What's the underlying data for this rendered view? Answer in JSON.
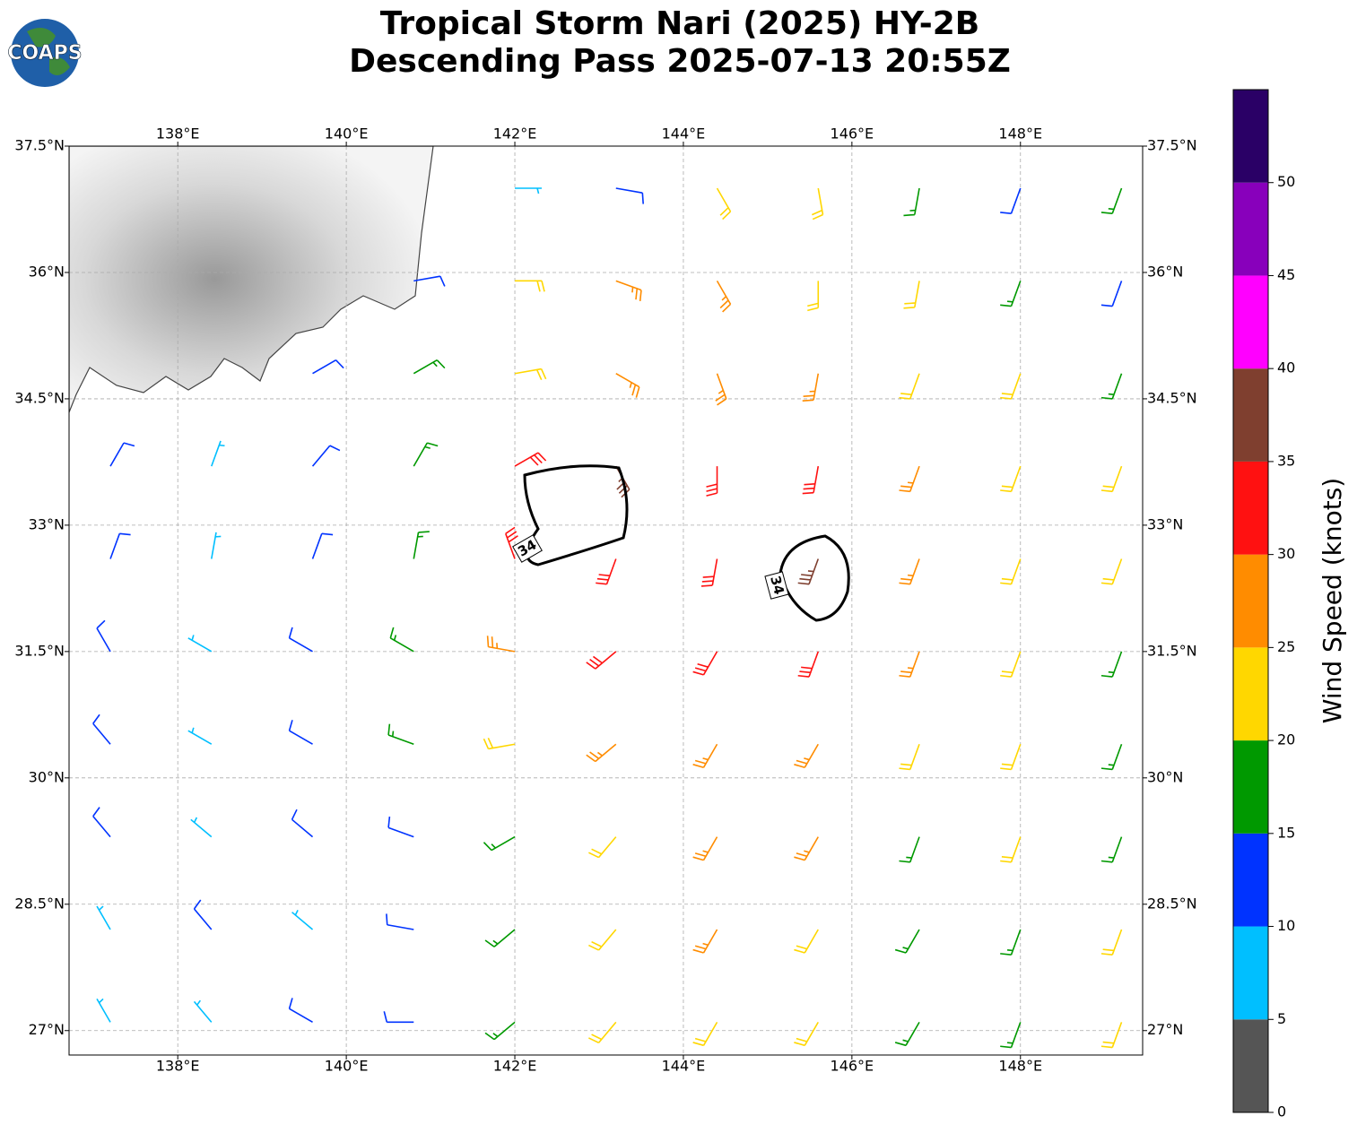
{
  "chart_data": {
    "type": "barbs",
    "title": "Tropical Storm Nari (2025) HY-2B",
    "subtitle": "Descending Pass 2025-07-13 20:55Z",
    "logo_text": "COAPS",
    "xlim": [
      136.71,
      149.45
    ],
    "ylim": [
      26.71,
      37.5
    ],
    "xticks": [
      {
        "value": 138,
        "label": "138°E"
      },
      {
        "value": 140,
        "label": "140°E"
      },
      {
        "value": 142,
        "label": "142°E"
      },
      {
        "value": 144,
        "label": "144°E"
      },
      {
        "value": 146,
        "label": "146°E"
      },
      {
        "value": 148,
        "label": "148°E"
      }
    ],
    "yticks": [
      {
        "value": 27,
        "label": "27°N"
      },
      {
        "value": 28.5,
        "label": "28.5°N"
      },
      {
        "value": 30,
        "label": "30°N"
      },
      {
        "value": 31.5,
        "label": "31.5°N"
      },
      {
        "value": 33,
        "label": "33°N"
      },
      {
        "value": 34.5,
        "label": "34.5°N"
      },
      {
        "value": 36,
        "label": "36°N"
      },
      {
        "value": 37.5,
        "label": "37.5°N"
      }
    ],
    "grid": true,
    "contour_label": "34",
    "barbs": {
      "lon": [
        137.2,
        138.4,
        139.6,
        140.8,
        142.0,
        143.2,
        144.4,
        145.6,
        146.8,
        148.0,
        149.2
      ],
      "lat": [
        37.0,
        35.9,
        34.8,
        33.7,
        32.6,
        31.5,
        30.4,
        29.3,
        28.2,
        27.1
      ],
      "speed": [
        [
          null,
          null,
          null,
          null,
          8,
          10,
          22,
          22,
          15,
          12,
          15
        ],
        [
          null,
          null,
          null,
          12,
          22,
          25,
          25,
          22,
          22,
          17,
          12
        ],
        [
          null,
          null,
          12,
          18,
          23,
          27,
          28,
          28,
          23,
          22,
          17
        ],
        [
          12,
          8,
          12,
          18,
          30,
          37,
          32,
          30,
          27,
          23,
          20
        ],
        [
          10,
          8,
          10,
          18,
          33,
          32,
          32,
          37,
          28,
          23,
          20
        ],
        [
          12,
          8,
          12,
          17,
          27,
          30,
          30,
          30,
          27,
          22,
          18
        ],
        [
          12,
          8,
          12,
          15,
          22,
          25,
          28,
          27,
          23,
          22,
          17
        ],
        [
          12,
          8,
          10,
          12,
          17,
          22,
          25,
          25,
          18,
          20,
          18
        ],
        [
          8,
          12,
          8,
          12,
          17,
          22,
          25,
          23,
          17,
          17,
          22
        ],
        [
          8,
          8,
          10,
          12,
          17,
          22,
          22,
          22,
          17,
          17,
          20
        ]
      ],
      "direction": [
        [
          null,
          null,
          null,
          null,
          90,
          100,
          150,
          170,
          190,
          200,
          200
        ],
        [
          null,
          null,
          null,
          80,
          90,
          110,
          150,
          180,
          190,
          200,
          200
        ],
        [
          null,
          null,
          60,
          60,
          80,
          120,
          160,
          190,
          200,
          200,
          200
        ],
        [
          30,
          20,
          40,
          30,
          60,
          150,
          180,
          190,
          200,
          200,
          200
        ],
        [
          20,
          10,
          20,
          10,
          340,
          200,
          190,
          200,
          200,
          200,
          200
        ],
        [
          330,
          300,
          300,
          300,
          280,
          230,
          210,
          200,
          200,
          200,
          200
        ],
        [
          320,
          300,
          300,
          290,
          260,
          230,
          210,
          210,
          200,
          200,
          200
        ],
        [
          320,
          310,
          310,
          290,
          240,
          220,
          210,
          210,
          200,
          200,
          200
        ],
        [
          330,
          320,
          310,
          280,
          230,
          220,
          210,
          210,
          210,
          200,
          200
        ],
        [
          330,
          320,
          300,
          270,
          230,
          220,
          210,
          210,
          210,
          200,
          200
        ]
      ]
    },
    "colorbar": {
      "label": "Wind Speed (knots)",
      "clim": [
        0,
        55
      ],
      "boundaries": [
        0,
        5,
        10,
        15,
        20,
        25,
        30,
        35,
        40,
        45,
        50,
        55
      ],
      "colors": [
        "#555555",
        "#00bfff",
        "#0033ff",
        "#009900",
        "#ffd700",
        "#ff8c00",
        "#ff1111",
        "#7f3f2f",
        "#ff00ff",
        "#8800bb",
        "#2a0066"
      ],
      "ticks": [
        0,
        5,
        10,
        15,
        20,
        25,
        30,
        35,
        40,
        45,
        50
      ]
    }
  }
}
